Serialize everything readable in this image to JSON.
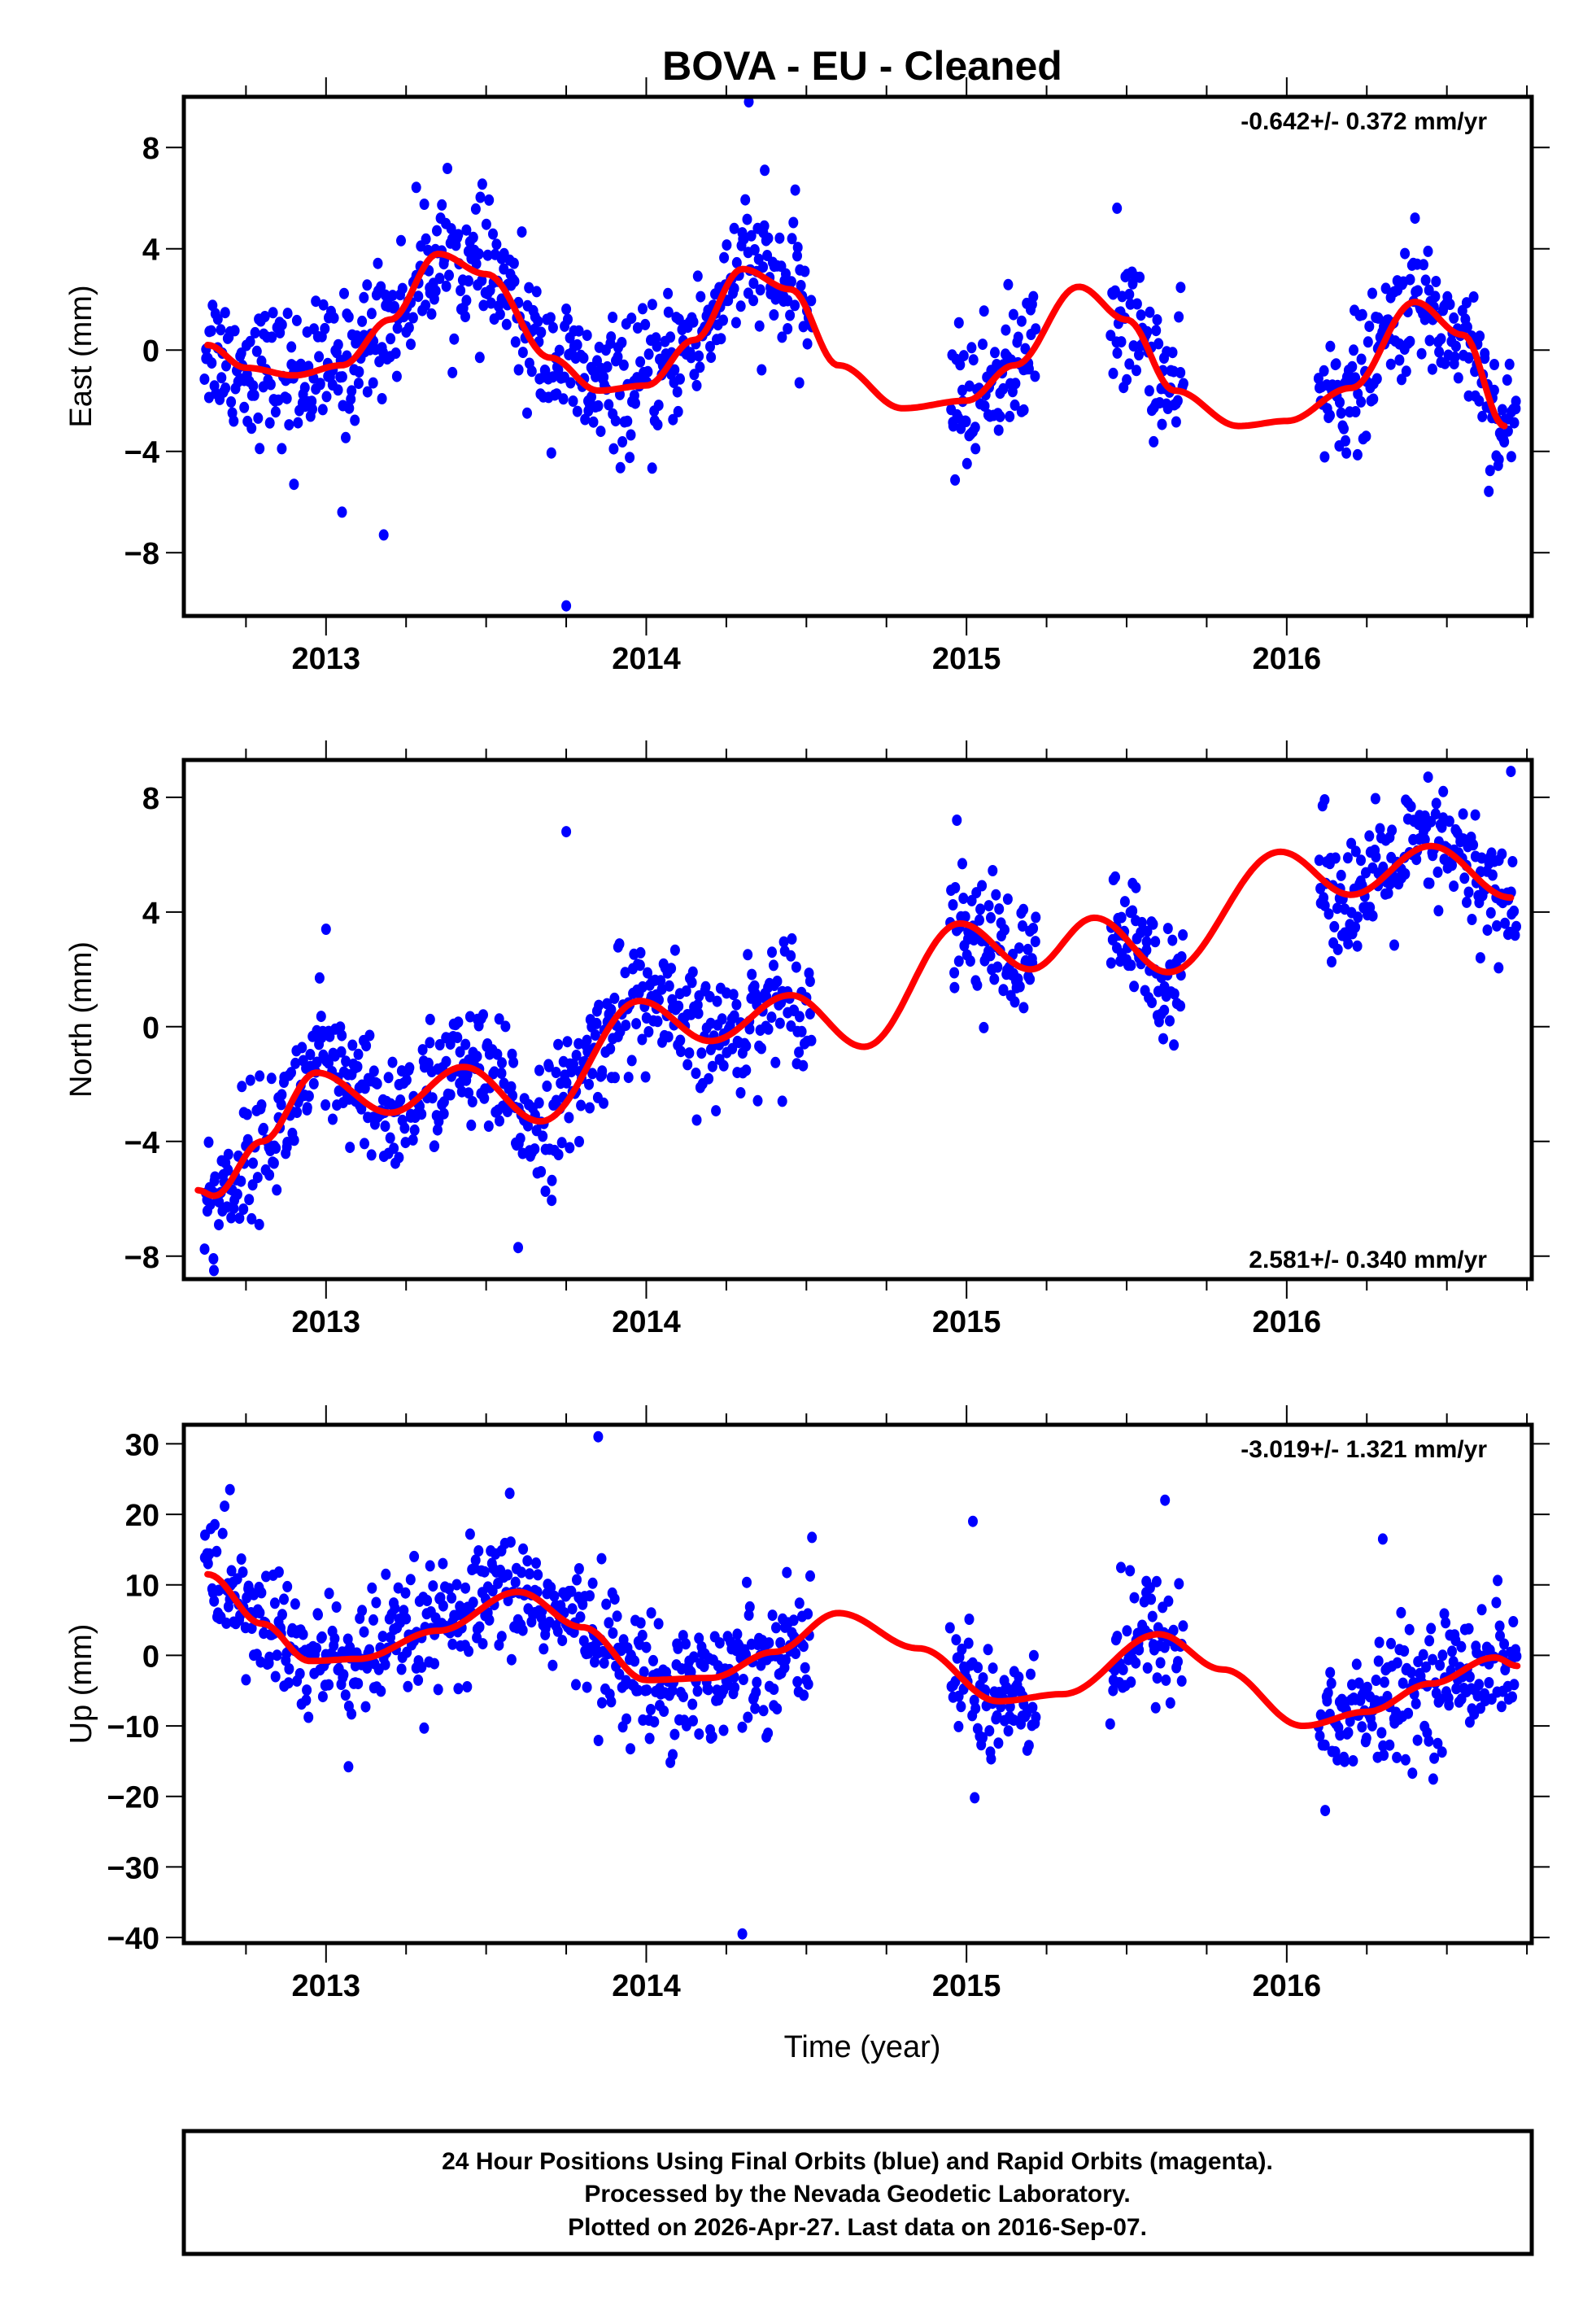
{
  "chart_data": {
    "type": "scatter",
    "title": "BOVA  - EU - Cleaned",
    "xlabel": "Time (year)",
    "xlim": [
      2012.556,
      2016.765
    ],
    "xticks": [
      2013,
      2014,
      2015,
      2016
    ],
    "xtick_labels": [
      "2013",
      "2014",
      "2015",
      "2016"
    ],
    "x_minor_step": 0.25,
    "colors": {
      "points": "#0000ff",
      "fit": "#ff0000",
      "frame": "#000000"
    },
    "data_segments": [
      [
        2012.62,
        2014.52
      ],
      [
        2014.95,
        2015.22
      ],
      [
        2015.45,
        2015.68
      ],
      [
        2016.1,
        2016.72
      ]
    ],
    "panels": [
      {
        "name": "east",
        "ylabel": "East (mm)",
        "ylim": [
          -10.5,
          10.0
        ],
        "yticks": [
          -8,
          -4,
          0,
          4,
          8
        ],
        "ytick_labels": [
          "−8",
          "−4",
          "0",
          "4",
          "8"
        ],
        "rate_text": "-0.642+/- 0.372 mm/yr",
        "rate_position": "top-right",
        "fit_curve": {
          "x": [
            2012.63,
            2012.75,
            2012.9,
            2013.05,
            2013.2,
            2013.35,
            2013.5,
            2013.7,
            2013.85,
            2014.0,
            2014.15,
            2014.3,
            2014.45,
            2014.6,
            2014.8,
            2015.0,
            2015.15,
            2015.35,
            2015.5,
            2015.65,
            2015.85,
            2016.0,
            2016.2,
            2016.4,
            2016.55,
            2016.68
          ],
          "y": [
            0.2,
            -0.7,
            -1.0,
            -0.6,
            1.2,
            3.8,
            3.0,
            -0.3,
            -1.6,
            -1.4,
            0.4,
            3.2,
            2.4,
            -0.6,
            -2.3,
            -2.0,
            -0.6,
            2.5,
            1.2,
            -1.6,
            -3.0,
            -2.8,
            -1.5,
            1.9,
            0.6,
            -3.0
          ]
        },
        "scatter_noise_mm": 1.3,
        "scatter_points_per_year": 300,
        "outliers": {
          "x": [
            2014.32,
            2013.75,
            2013.05,
            2012.9,
            2013.18,
            2014.37,
            2015.47
          ],
          "y": [
            9.8,
            -10.1,
            -6.4,
            -5.3,
            -7.3,
            7.1,
            5.6
          ]
        }
      },
      {
        "name": "north",
        "ylabel": "North (mm)",
        "ylim": [
          -8.8,
          9.3
        ],
        "yticks": [
          -8,
          -4,
          0,
          4,
          8
        ],
        "ytick_labels": [
          "−8",
          "−4",
          "0",
          "4",
          "8"
        ],
        "rate_text": "2.581+/- 0.340 mm/yr",
        "rate_position": "bottom-right",
        "fit_curve": {
          "x": [
            2012.6,
            2012.65,
            2012.8,
            2012.97,
            2013.2,
            2013.43,
            2013.67,
            2013.98,
            2014.2,
            2014.45,
            2014.68,
            2014.98,
            2015.2,
            2015.4,
            2015.63,
            2015.98,
            2016.2,
            2016.45,
            2016.7
          ],
          "y": [
            -5.7,
            -5.9,
            -4.0,
            -1.6,
            -3.0,
            -1.4,
            -3.3,
            0.9,
            -0.5,
            1.1,
            -0.7,
            3.6,
            2.0,
            3.8,
            1.9,
            6.1,
            4.6,
            6.3,
            4.5
          ]
        },
        "scatter_noise_mm": 1.1,
        "scatter_points_per_year": 300,
        "outliers": {
          "x": [
            2013.75,
            2013.0,
            2012.98,
            2013.6,
            2014.97,
            2016.7,
            2012.65
          ],
          "y": [
            6.8,
            3.4,
            1.7,
            -7.7,
            7.2,
            8.9,
            -8.5
          ]
        }
      },
      {
        "name": "up",
        "ylabel": "Up (mm)",
        "ylim": [
          -40.8,
          32.7
        ],
        "yticks": [
          -40,
          -30,
          -20,
          -10,
          0,
          10,
          20,
          30
        ],
        "ytick_labels": [
          "−40",
          "−30",
          "−20",
          "−10",
          "0",
          "10",
          "20",
          "30"
        ],
        "rate_text": "-3.019+/- 1.321 mm/yr",
        "rate_position": "top-right",
        "fit_curve": {
          "x": [
            2012.63,
            2012.8,
            2012.95,
            2013.1,
            2013.35,
            2013.6,
            2013.8,
            2014.0,
            2014.2,
            2014.4,
            2014.6,
            2014.85,
            2015.1,
            2015.3,
            2015.6,
            2015.8,
            2016.05,
            2016.25,
            2016.45,
            2016.65,
            2016.72
          ],
          "y": [
            11.5,
            4.5,
            -0.8,
            -0.5,
            3.5,
            9.0,
            4.0,
            -3.5,
            -3.2,
            0.5,
            6.0,
            1.0,
            -6.5,
            -5.5,
            3.0,
            -2.0,
            -10.0,
            -8.0,
            -4.0,
            -0.3,
            -1.5
          ]
        },
        "scatter_noise_mm": 4.5,
        "scatter_points_per_year": 300,
        "outliers": {
          "x": [
            2013.85,
            2014.3,
            2012.7,
            2015.02,
            2015.62,
            2016.3,
            2013.07,
            2016.12
          ],
          "y": [
            31.0,
            -39.5,
            23.5,
            19.0,
            22.0,
            16.5,
            -15.8,
            -22.0
          ]
        }
      }
    ]
  },
  "footer": {
    "lines": [
      "24 Hour Positions Using Final Orbits (blue) and Rapid Orbits (magenta).",
      "Processed by the Nevada Geodetic Laboratory.",
      "Plotted on 2026-Apr-27. Last data on 2016-Sep-07."
    ]
  }
}
